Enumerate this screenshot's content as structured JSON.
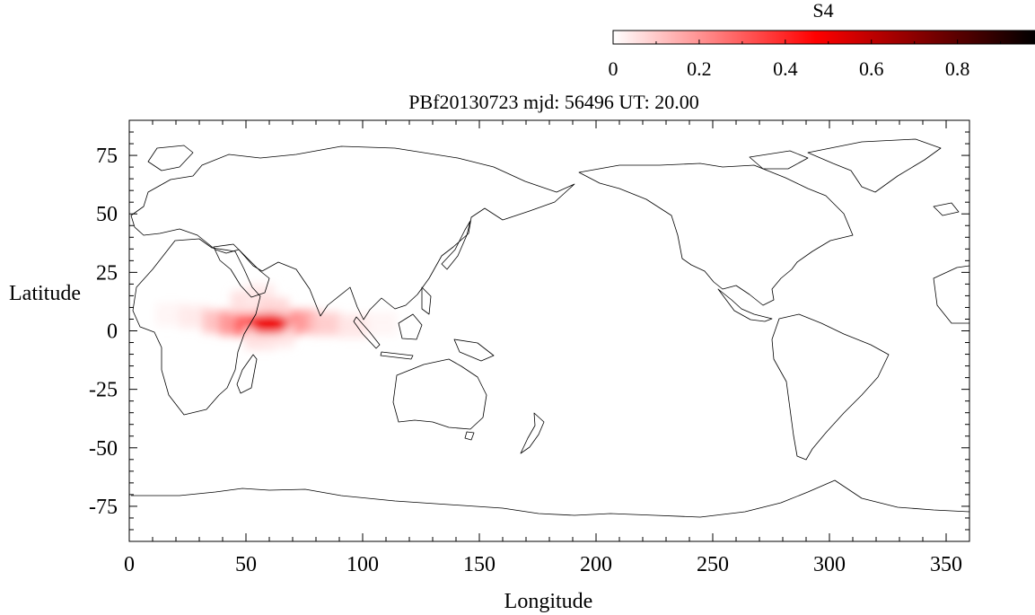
{
  "title": "PBf20130723  mjd: 56496  UT:  20.00",
  "colorbar": {
    "label": "S4",
    "range": [
      0,
      0.98
    ],
    "ticks": [
      0,
      0.2,
      0.4,
      0.6,
      0.8
    ],
    "tick_labels": [
      "0",
      "0.2",
      "0.4",
      "0.6",
      "0.8"
    ],
    "colors": [
      "#ffffff",
      "#ff0000",
      "#000000"
    ]
  },
  "map": {
    "xlabel": "Longitude",
    "ylabel": "Latitude",
    "xlim": [
      0,
      360
    ],
    "ylim": [
      -90,
      90
    ],
    "x_ticks": [
      0,
      50,
      100,
      150,
      200,
      250,
      300,
      350
    ],
    "x_tick_labels": [
      "0",
      "50",
      "100",
      "150",
      "200",
      "250",
      "300",
      "350"
    ],
    "y_ticks": [
      75,
      50,
      25,
      0,
      -25,
      -50,
      -75
    ],
    "y_tick_labels": [
      "75",
      "50",
      "25",
      "0",
      "-25",
      "-50",
      "-75"
    ],
    "projection": "equirectangular (longitude 0-360 E)",
    "basemap": "world coastlines, thin black outline"
  },
  "s4_field": {
    "region": "equatorial band over East Africa and the northern Indian Ocean",
    "peak": {
      "lon": 60,
      "lat": 3,
      "s4": 0.5
    },
    "cells": [
      {
        "lon": 18,
        "lat": 7,
        "s4": 0.02
      },
      {
        "lon": 28,
        "lat": 6,
        "s4": 0.04
      },
      {
        "lon": 38,
        "lat": 4,
        "s4": 0.12
      },
      {
        "lon": 45,
        "lat": 3,
        "s4": 0.2
      },
      {
        "lon": 52,
        "lat": 3,
        "s4": 0.32
      },
      {
        "lon": 60,
        "lat": 3,
        "s4": 0.5
      },
      {
        "lon": 66,
        "lat": 3,
        "s4": 0.38
      },
      {
        "lon": 74,
        "lat": 4,
        "s4": 0.2
      },
      {
        "lon": 84,
        "lat": 3,
        "s4": 0.1
      },
      {
        "lon": 96,
        "lat": 2,
        "s4": 0.05
      },
      {
        "lon": 108,
        "lat": 3,
        "s4": 0.02
      },
      {
        "lon": 50,
        "lat": 12,
        "s4": 0.06
      },
      {
        "lon": 56,
        "lat": 15,
        "s4": 0.04
      },
      {
        "lon": 62,
        "lat": 9,
        "s4": 0.08
      },
      {
        "lon": 56,
        "lat": -3,
        "s4": 0.06
      },
      {
        "lon": 64,
        "lat": -2,
        "s4": 0.05
      }
    ]
  }
}
